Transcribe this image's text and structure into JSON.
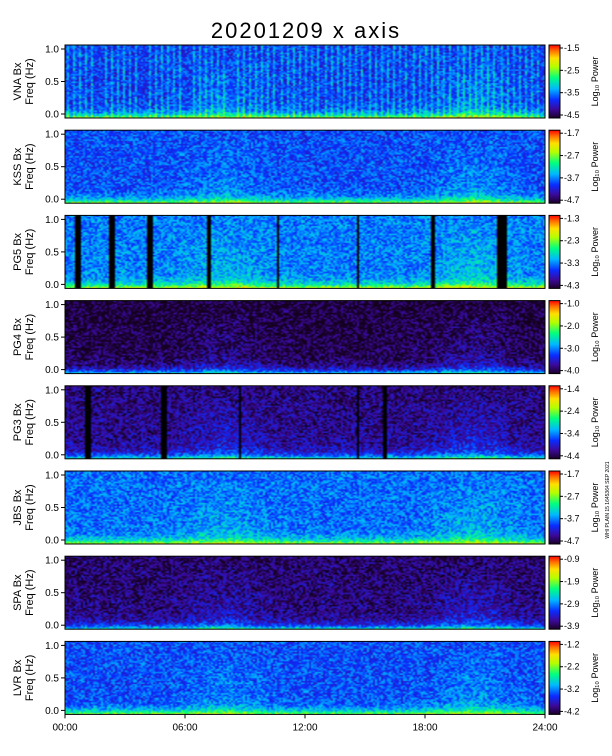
{
  "title": "20201209  x axis",
  "stamp": "WHI PLAIN 15 1645364 SEP 2021",
  "chart_data": {
    "type": "heatmap",
    "x_axis": {
      "range": [
        "00:00",
        "24:00"
      ],
      "ticks": [
        "00:00",
        "06:00",
        "12:00",
        "18:00",
        "24:00"
      ]
    },
    "y_axis": {
      "label": "Freq (Hz)",
      "range": [
        0,
        1.0
      ],
      "ticks": [
        "0.0",
        "0.5",
        "1.0"
      ]
    },
    "colorbar_label": "Log₁₀ Power",
    "panels": [
      {
        "station": "VNA Bx",
        "cbar_ticks": [
          "-1.5",
          "-2.5",
          "-3.5",
          "-4.5"
        ],
        "base": 0.3,
        "texture": "stripes",
        "gaps": []
      },
      {
        "station": "KSS Bx",
        "cbar_ticks": [
          "-1.7",
          "-2.7",
          "-3.7",
          "-4.7"
        ],
        "base": 0.28,
        "texture": "noise",
        "gaps": []
      },
      {
        "station": "PG5 Bx",
        "cbar_ticks": [
          "-1.3",
          "-2.3",
          "-3.3",
          "-4.3"
        ],
        "base": 0.34,
        "texture": "noise",
        "gaps": [
          [
            0.02,
            0.03
          ],
          [
            0.09,
            0.1
          ],
          [
            0.17,
            0.18
          ],
          [
            0.295,
            0.3
          ],
          [
            0.438,
            0.445
          ],
          [
            0.605,
            0.612
          ],
          [
            0.76,
            0.767
          ],
          [
            0.9,
            0.92
          ]
        ]
      },
      {
        "station": "PG4 Bx",
        "cbar_ticks": [
          "-1.0",
          "-2.0",
          "-3.0",
          "-4.0"
        ],
        "base": 0.05,
        "texture": "dark",
        "gaps": []
      },
      {
        "station": "PG3 Bx",
        "cbar_ticks": [
          "-1.4",
          "-2.4",
          "-3.4",
          "-4.4"
        ],
        "base": 0.12,
        "texture": "dark",
        "gaps": [
          [
            0.04,
            0.05
          ],
          [
            0.2,
            0.21
          ],
          [
            0.36,
            0.366
          ],
          [
            0.605,
            0.612
          ],
          [
            0.66,
            0.667
          ]
        ]
      },
      {
        "station": "JBS Bx",
        "cbar_ticks": [
          "-1.7",
          "-2.7",
          "-3.7",
          "-4.7"
        ],
        "base": 0.32,
        "texture": "noise",
        "gaps": []
      },
      {
        "station": "SPA Bx",
        "cbar_ticks": [
          "-0.9",
          "-1.9",
          "-2.9",
          "-3.9"
        ],
        "base": 0.1,
        "texture": "dark",
        "gaps": []
      },
      {
        "station": "LVR Bx",
        "cbar_ticks": [
          "-1.2",
          "-2.2",
          "-3.2",
          "-4.2"
        ],
        "base": 0.28,
        "texture": "noise",
        "gaps": []
      }
    ]
  }
}
